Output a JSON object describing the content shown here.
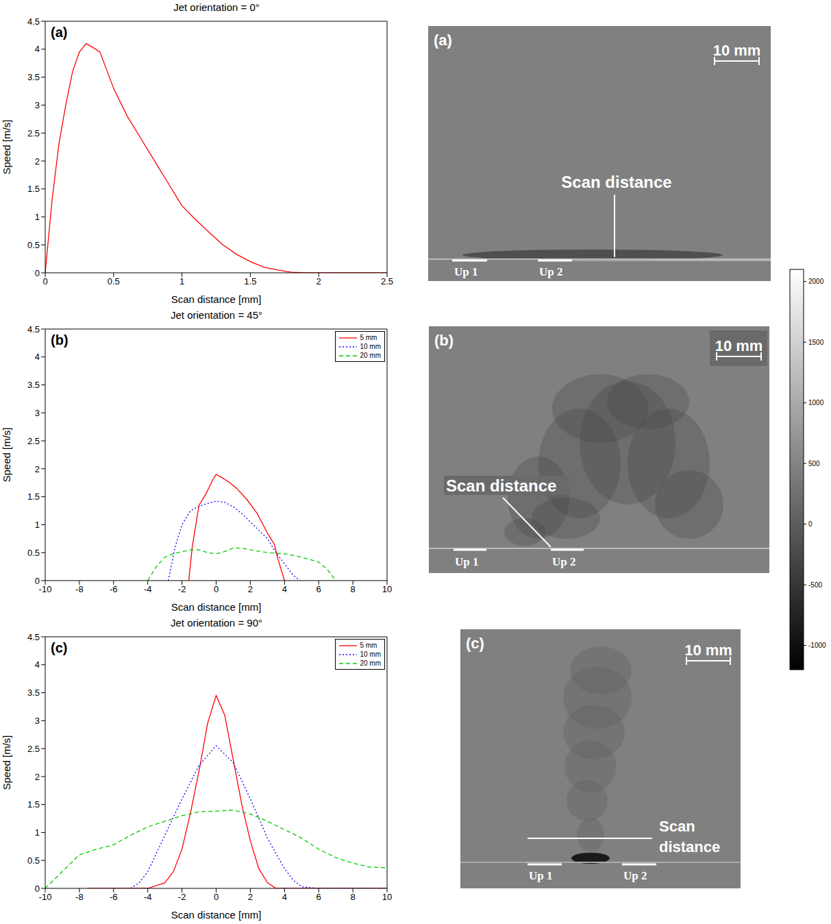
{
  "chart_data": [
    {
      "type": "line",
      "label": "(a)",
      "title": "Jet orientation = 0°",
      "x_label": "Scan distance [mm]",
      "y_label": "Speed [m/s]",
      "xlim": [
        0,
        2.5
      ],
      "xticks": [
        0,
        0.5,
        1,
        1.5,
        2,
        2.5
      ],
      "ylim": [
        0,
        4.5
      ],
      "yticks": [
        0,
        0.5,
        1,
        1.5,
        2,
        2.5,
        3,
        3.5,
        4,
        4.5
      ],
      "grid": false,
      "series": [
        {
          "color": "#ff0000",
          "line_style": "solid",
          "x": [
            0,
            0.05,
            0.1,
            0.15,
            0.2,
            0.25,
            0.3,
            0.35,
            0.4,
            0.5,
            0.6,
            0.7,
            0.8,
            0.9,
            1.0,
            1.1,
            1.2,
            1.3,
            1.4,
            1.5,
            1.6,
            1.7,
            1.8,
            1.9,
            2.0,
            2.5
          ],
          "values": [
            0,
            1.3,
            2.3,
            3.0,
            3.6,
            3.95,
            4.1,
            4.03,
            3.95,
            3.3,
            2.8,
            2.4,
            2.0,
            1.6,
            1.2,
            0.95,
            0.72,
            0.5,
            0.33,
            0.2,
            0.1,
            0.05,
            0.01,
            0,
            0,
            0
          ]
        }
      ]
    },
    {
      "type": "line",
      "label": "(b)",
      "title": "Jet orientation = 45°",
      "x_label": "Scan distance [mm]",
      "y_label": "Speed [m/s]",
      "xlim": [
        -10,
        10
      ],
      "xticks": [
        -10,
        -8,
        -6,
        -4,
        -2,
        0,
        2,
        4,
        6,
        8,
        10
      ],
      "ylim": [
        0,
        4.5
      ],
      "yticks": [
        0,
        0.5,
        1,
        1.5,
        2,
        2.5,
        3,
        3.5,
        4,
        4.5
      ],
      "grid": false,
      "legend": "upper right",
      "series": [
        {
          "name": "5 mm",
          "color": "#ff0000",
          "line_style": "solid",
          "x": [
            -1.6,
            -1.4,
            -1.0,
            -0.6,
            -0.2,
            0,
            0.3,
            0.8,
            1.2,
            1.8,
            2.4,
            3.0,
            3.4,
            3.6,
            4.0
          ],
          "values": [
            0,
            0.6,
            1.35,
            1.55,
            1.8,
            1.9,
            1.85,
            1.75,
            1.65,
            1.45,
            1.2,
            0.85,
            0.65,
            0.4,
            0
          ]
        },
        {
          "name": "10 mm",
          "color": "#0000ff",
          "line_style": "dotted",
          "x": [
            -2.8,
            -2.4,
            -2,
            -1.5,
            -1,
            -0.5,
            0,
            0.5,
            1,
            1.5,
            2,
            2.5,
            3,
            3.5,
            4,
            4.5,
            4.9
          ],
          "values": [
            0,
            0.6,
            1.0,
            1.25,
            1.33,
            1.38,
            1.42,
            1.4,
            1.32,
            1.2,
            1.05,
            0.9,
            0.75,
            0.5,
            0.3,
            0.1,
            0
          ]
        },
        {
          "name": "20 mm",
          "color": "#00cc00",
          "line_style": "dashed",
          "x": [
            -4,
            -3.5,
            -3,
            -2.5,
            -1.5,
            -1,
            -0.5,
            0,
            0.5,
            1,
            1.5,
            2,
            3,
            4,
            5,
            6,
            6.5,
            7
          ],
          "values": [
            0,
            0.25,
            0.42,
            0.48,
            0.55,
            0.55,
            0.5,
            0.48,
            0.52,
            0.58,
            0.58,
            0.55,
            0.5,
            0.48,
            0.42,
            0.33,
            0.2,
            0
          ]
        }
      ]
    },
    {
      "type": "line",
      "label": "(c)",
      "title": "Jet orientation = 90°",
      "x_label": "Scan distance [mm]",
      "y_label": "Speed [m/s]",
      "xlim": [
        -10,
        10
      ],
      "xticks": [
        -10,
        -8,
        -6,
        -4,
        -2,
        0,
        2,
        4,
        6,
        8,
        10
      ],
      "ylim": [
        0,
        4.5
      ],
      "yticks": [
        0,
        0.5,
        1,
        1.5,
        2,
        2.5,
        3,
        3.5,
        4,
        4.5
      ],
      "grid": false,
      "legend": "upper right",
      "series": [
        {
          "name": "5 mm",
          "color": "#ff0000",
          "line_style": "solid",
          "x": [
            -7.5,
            -4,
            -3,
            -2.5,
            -2,
            -1.5,
            -1,
            -0.5,
            0,
            0.5,
            1,
            1.5,
            2,
            2.5,
            3,
            3.5,
            10
          ],
          "values": [
            0,
            0,
            0.1,
            0.3,
            0.7,
            1.35,
            2.1,
            2.95,
            3.45,
            3.1,
            2.3,
            1.5,
            0.85,
            0.35,
            0.1,
            0,
            0
          ]
        },
        {
          "name": "10 mm",
          "color": "#0000ff",
          "line_style": "dotted",
          "x": [
            -5,
            -4.5,
            -4,
            -3,
            -2,
            -1,
            0,
            1,
            2,
            3,
            4,
            4.5,
            5,
            6,
            10
          ],
          "values": [
            0,
            0.1,
            0.3,
            0.95,
            1.6,
            2.2,
            2.55,
            2.25,
            1.6,
            0.9,
            0.35,
            0.15,
            0.03,
            0,
            0
          ]
        },
        {
          "name": "20 mm",
          "color": "#00cc00",
          "line_style": "dashed",
          "x": [
            -10,
            -9,
            -8,
            -7,
            -6,
            -5,
            -4,
            -3,
            -2,
            -1,
            0,
            1,
            2,
            3,
            4,
            5,
            6,
            7,
            8,
            9,
            10
          ],
          "values": [
            0,
            0.3,
            0.6,
            0.7,
            0.78,
            0.95,
            1.1,
            1.2,
            1.3,
            1.37,
            1.38,
            1.4,
            1.33,
            1.2,
            1.05,
            0.9,
            0.7,
            0.55,
            0.45,
            0.38,
            0.37
          ]
        }
      ]
    }
  ],
  "images": [
    {
      "label": "(a)",
      "scale_bar": "10 mm",
      "texts": [
        "Scan distance",
        "Up 1",
        "Up 2"
      ]
    },
    {
      "label": "(b)",
      "scale_bar": "10 mm",
      "texts": [
        "Scan distance",
        "Up 1",
        "Up 2"
      ]
    },
    {
      "label": "(c)",
      "scale_bar": "10 mm",
      "texts": [
        "Scan distance",
        "Up 1",
        "Up 2"
      ]
    }
  ],
  "colorbar": {
    "range": [
      -1200,
      2100
    ],
    "ticks": [
      2000,
      1500,
      1000,
      500,
      0,
      -500,
      -1000
    ]
  }
}
